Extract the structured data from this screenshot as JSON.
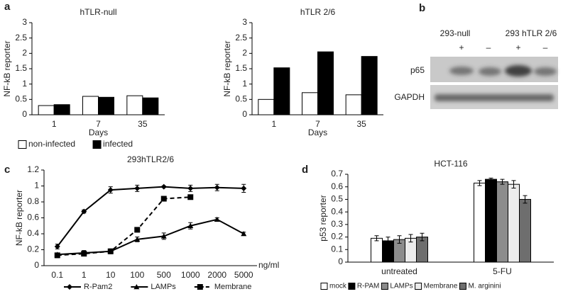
{
  "panel_labels": [
    "a",
    "b",
    "c",
    "d"
  ],
  "blot": {
    "groups": [
      "293-null",
      "293 hTLR 2/6"
    ],
    "lanes": [
      "+",
      "–",
      "+",
      "–"
    ],
    "rows": [
      "p65",
      "GAPDH"
    ]
  },
  "chart_data": [
    {
      "type": "bar",
      "title": "hTLR-null",
      "ylabel": "NF-kB reporter",
      "xlabel": "Days",
      "categories": [
        "1",
        "7",
        "35"
      ],
      "ylim": [
        0,
        3
      ],
      "yticks": [
        0,
        0.5,
        1,
        1.5,
        2,
        2.5,
        3
      ],
      "series": [
        {
          "name": "non-infected",
          "color": "#ffffff",
          "values": [
            0.3,
            0.6,
            0.62
          ]
        },
        {
          "name": "infected",
          "color": "#000000",
          "values": [
            0.33,
            0.57,
            0.55
          ]
        }
      ]
    },
    {
      "type": "bar",
      "title": "hTLR 2/6",
      "ylabel": "NF-kB reporter",
      "xlabel": "Days",
      "categories": [
        "1",
        "7",
        "35"
      ],
      "ylim": [
        0,
        3
      ],
      "yticks": [
        0,
        0.5,
        1,
        1.5,
        2,
        2.5,
        3
      ],
      "series": [
        {
          "color": "#ffffff",
          "values": [
            0.5,
            0.72,
            0.65
          ]
        },
        {
          "color": "#000000",
          "values": [
            1.53,
            2.05,
            1.9
          ]
        }
      ]
    },
    {
      "type": "line",
      "title": "293hTLR2/6",
      "ylabel": "NF-kB reporter",
      "xlabel": "ng/ml",
      "categories": [
        "0.1",
        "1",
        "10",
        "100",
        "500",
        "1000",
        "2000",
        "5000"
      ],
      "ylim": [
        0,
        1.2
      ],
      "yticks": [
        0,
        0.2,
        0.4,
        0.6,
        0.8,
        1,
        1.2
      ],
      "series": [
        {
          "name": "R-Pam2",
          "color": "#000000",
          "marker": "diamond",
          "linestyle": "solid",
          "values": [
            0.24,
            0.68,
            0.95,
            0.97,
            0.99,
            0.97,
            0.98,
            0.97
          ],
          "errors": [
            0.03,
            0.02,
            0.04,
            0.04,
            0.01,
            0.04,
            0.04,
            0.05
          ]
        },
        {
          "name": "LAMPs",
          "color": "#000000",
          "marker": "triangle",
          "linestyle": "solid",
          "values": [
            0.14,
            0.16,
            0.18,
            0.33,
            0.37,
            0.5,
            0.58,
            0.4
          ],
          "errors": [
            0.02,
            0.03,
            0.03,
            0.03,
            0.04,
            0.04,
            0.02,
            0.02
          ]
        },
        {
          "name": "Membrane",
          "color": "#000000",
          "marker": "square",
          "linestyle": "dashed",
          "values": [
            0.13,
            0.15,
            0.18,
            0.45,
            0.84,
            0.86,
            null,
            null
          ],
          "errors": [
            0.03,
            0.03,
            0.03,
            0.01,
            0.01,
            0.02,
            null,
            null
          ]
        }
      ]
    },
    {
      "type": "bar",
      "title": "HCT-116",
      "ylabel": "p53 reporter",
      "categories": [
        "untreated",
        "5-FU"
      ],
      "ylim": [
        0,
        0.7
      ],
      "yticks": [
        0,
        0.1,
        0.2,
        0.3,
        0.4,
        0.5,
        0.6,
        0.7
      ],
      "series": [
        {
          "name": "mock",
          "color": "#ffffff",
          "values": [
            0.19,
            0.63
          ],
          "errors": [
            0.02,
            0.02
          ]
        },
        {
          "name": "R-PAM",
          "color": "#000000",
          "values": [
            0.17,
            0.66
          ],
          "errors": [
            0.03,
            0.01
          ]
        },
        {
          "name": "LAMPs",
          "color": "#8c8c8c",
          "values": [
            0.18,
            0.64
          ],
          "errors": [
            0.03,
            0.02
          ]
        },
        {
          "name": "Membrane",
          "color": "#ececec",
          "values": [
            0.19,
            0.62
          ],
          "errors": [
            0.03,
            0.03
          ]
        },
        {
          "name": "M. arginini",
          "color": "#6e6e6e",
          "values": [
            0.2,
            0.5
          ],
          "errors": [
            0.03,
            0.03
          ]
        }
      ]
    }
  ]
}
